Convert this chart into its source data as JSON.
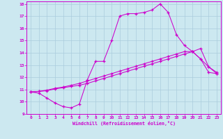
{
  "xlabel": "Windchill (Refroidissement éolien,°C)",
  "bg_color": "#cce8f0",
  "grid_color": "#aaccdd",
  "line_color": "#cc00cc",
  "xlim": [
    -0.5,
    23.5
  ],
  "ylim": [
    9,
    18.2
  ],
  "xticks": [
    0,
    1,
    2,
    3,
    4,
    5,
    6,
    7,
    8,
    9,
    10,
    11,
    12,
    13,
    14,
    15,
    16,
    17,
    18,
    19,
    20,
    21,
    22,
    23
  ],
  "yticks": [
    9,
    10,
    11,
    12,
    13,
    14,
    15,
    16,
    17,
    18
  ],
  "line1_x": [
    0,
    1,
    2,
    3,
    4,
    5,
    6,
    7,
    8,
    9,
    10,
    11,
    12,
    13,
    14,
    15,
    16,
    17,
    18,
    19,
    20,
    21,
    22,
    23
  ],
  "line1_y": [
    10.8,
    10.7,
    10.3,
    9.9,
    9.6,
    9.5,
    9.8,
    11.8,
    13.3,
    13.3,
    15.0,
    17.0,
    17.2,
    17.2,
    17.3,
    17.5,
    18.0,
    17.3,
    15.5,
    14.6,
    14.1,
    13.5,
    12.4,
    12.3
  ],
  "line2_x": [
    0,
    1,
    2,
    3,
    4,
    5,
    6,
    7,
    8,
    9,
    10,
    11,
    12,
    13,
    14,
    15,
    16,
    17,
    18,
    19,
    20,
    21,
    22,
    23
  ],
  "line2_y": [
    10.8,
    10.85,
    10.9,
    11.05,
    11.15,
    11.25,
    11.35,
    11.5,
    11.7,
    11.9,
    12.1,
    12.3,
    12.5,
    12.7,
    12.9,
    13.1,
    13.3,
    13.5,
    13.7,
    13.9,
    14.1,
    14.35,
    12.85,
    12.4
  ],
  "line3_x": [
    0,
    1,
    2,
    3,
    4,
    5,
    6,
    7,
    8,
    9,
    10,
    11,
    12,
    13,
    14,
    15,
    16,
    17,
    18,
    19,
    20,
    21,
    22,
    23
  ],
  "line3_y": [
    10.8,
    10.85,
    10.95,
    11.1,
    11.2,
    11.35,
    11.5,
    11.7,
    11.9,
    12.1,
    12.3,
    12.5,
    12.7,
    12.9,
    13.1,
    13.3,
    13.5,
    13.7,
    13.9,
    14.1,
    14.1,
    13.5,
    12.85,
    12.3
  ]
}
